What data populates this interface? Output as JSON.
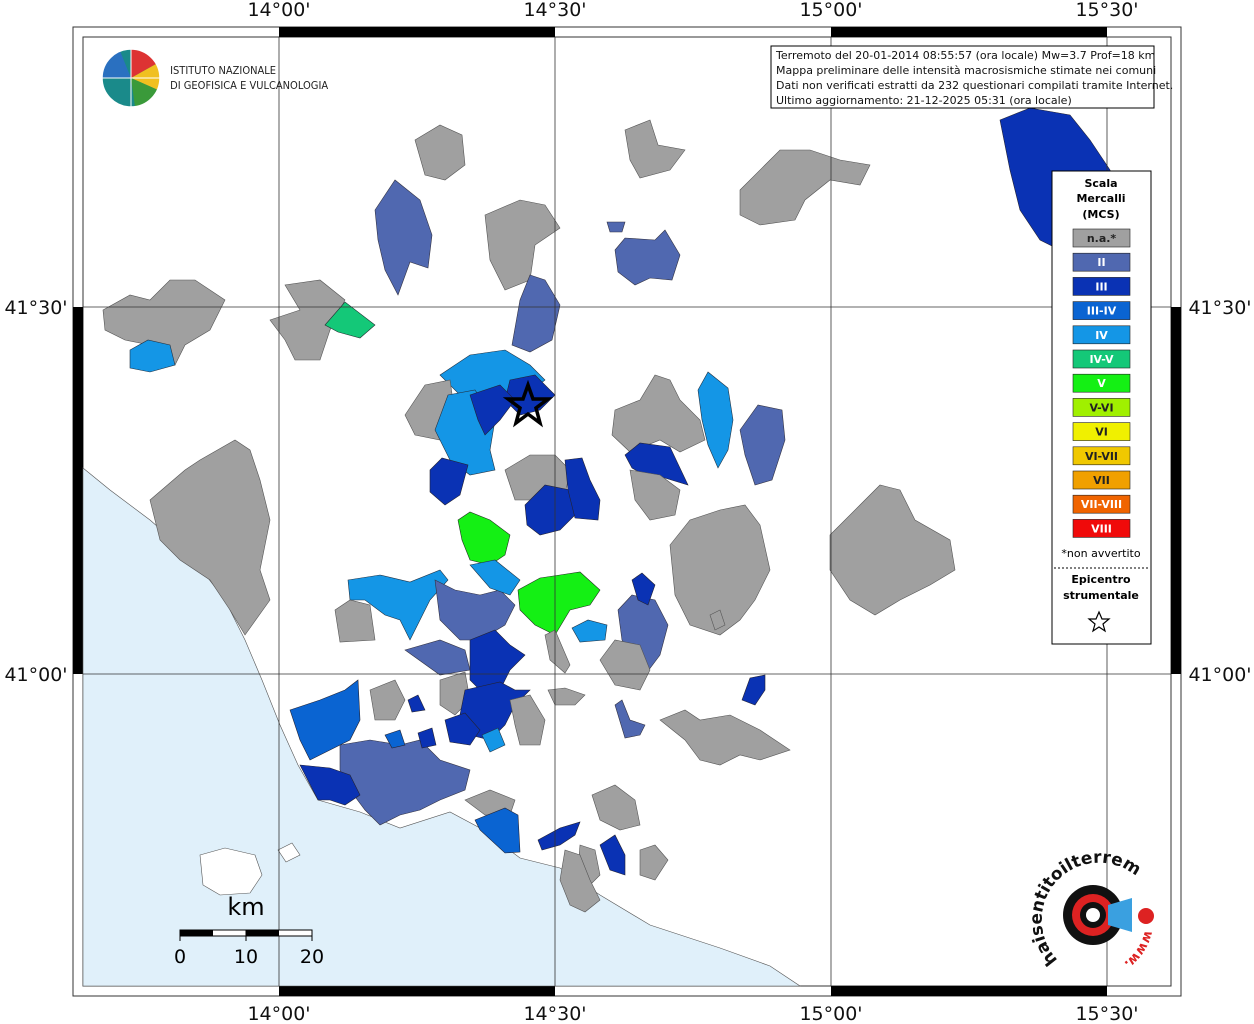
{
  "map": {
    "lon_labels": [
      "14°00'",
      "14°30'",
      "15°00'",
      "15°30'"
    ],
    "lat_labels": [
      "41°30'",
      "41°00'"
    ],
    "info": [
      "Terremoto del 20-01-2014 08:55:57 (ora locale) Mw=3.7 Prof=18 km",
      "Mappa preliminare delle intensità macrosismiche stimate nei comuni",
      "Dati non verificati estratti da 232 questionari compilati tramite Internet.",
      "Ultimo aggiornamento: 21-12-2025 05:31 (ora locale)"
    ],
    "legend": {
      "title": [
        "Scala",
        "Mercalli",
        "(MCS)"
      ],
      "items": [
        {
          "label": "n.a.*",
          "color": "#a0a0a0"
        },
        {
          "label": "II",
          "color": "#5068b0"
        },
        {
          "label": "III",
          "color": "#0a32b4"
        },
        {
          "label": "III-IV",
          "color": "#0a64d2"
        },
        {
          "label": "IV",
          "color": "#1496e6"
        },
        {
          "label": "IV-V",
          "color": "#14c878"
        },
        {
          "label": "V",
          "color": "#14f014"
        },
        {
          "label": "V-VI",
          "color": "#a0f000"
        },
        {
          "label": "VI",
          "color": "#f0f000"
        },
        {
          "label": "VI-VII",
          "color": "#f0c800"
        },
        {
          "label": "VII",
          "color": "#f0a000"
        },
        {
          "label": "VII-VIII",
          "color": "#f06400"
        },
        {
          "label": "VIII",
          "color": "#f00a0a"
        }
      ],
      "note": "*non avvertito",
      "epicenter": [
        "Epicentro",
        "strumentale"
      ]
    },
    "scale_bar": {
      "unit": "km",
      "labels": [
        "0",
        "10",
        "20"
      ]
    },
    "logo": {
      "institute": [
        "ISTITUTO NAZIONALE",
        "DI GEOFISICA E VULCANOLOGIA"
      ],
      "site": "haisentitoilterremoto.it",
      "www": "www."
    }
  }
}
